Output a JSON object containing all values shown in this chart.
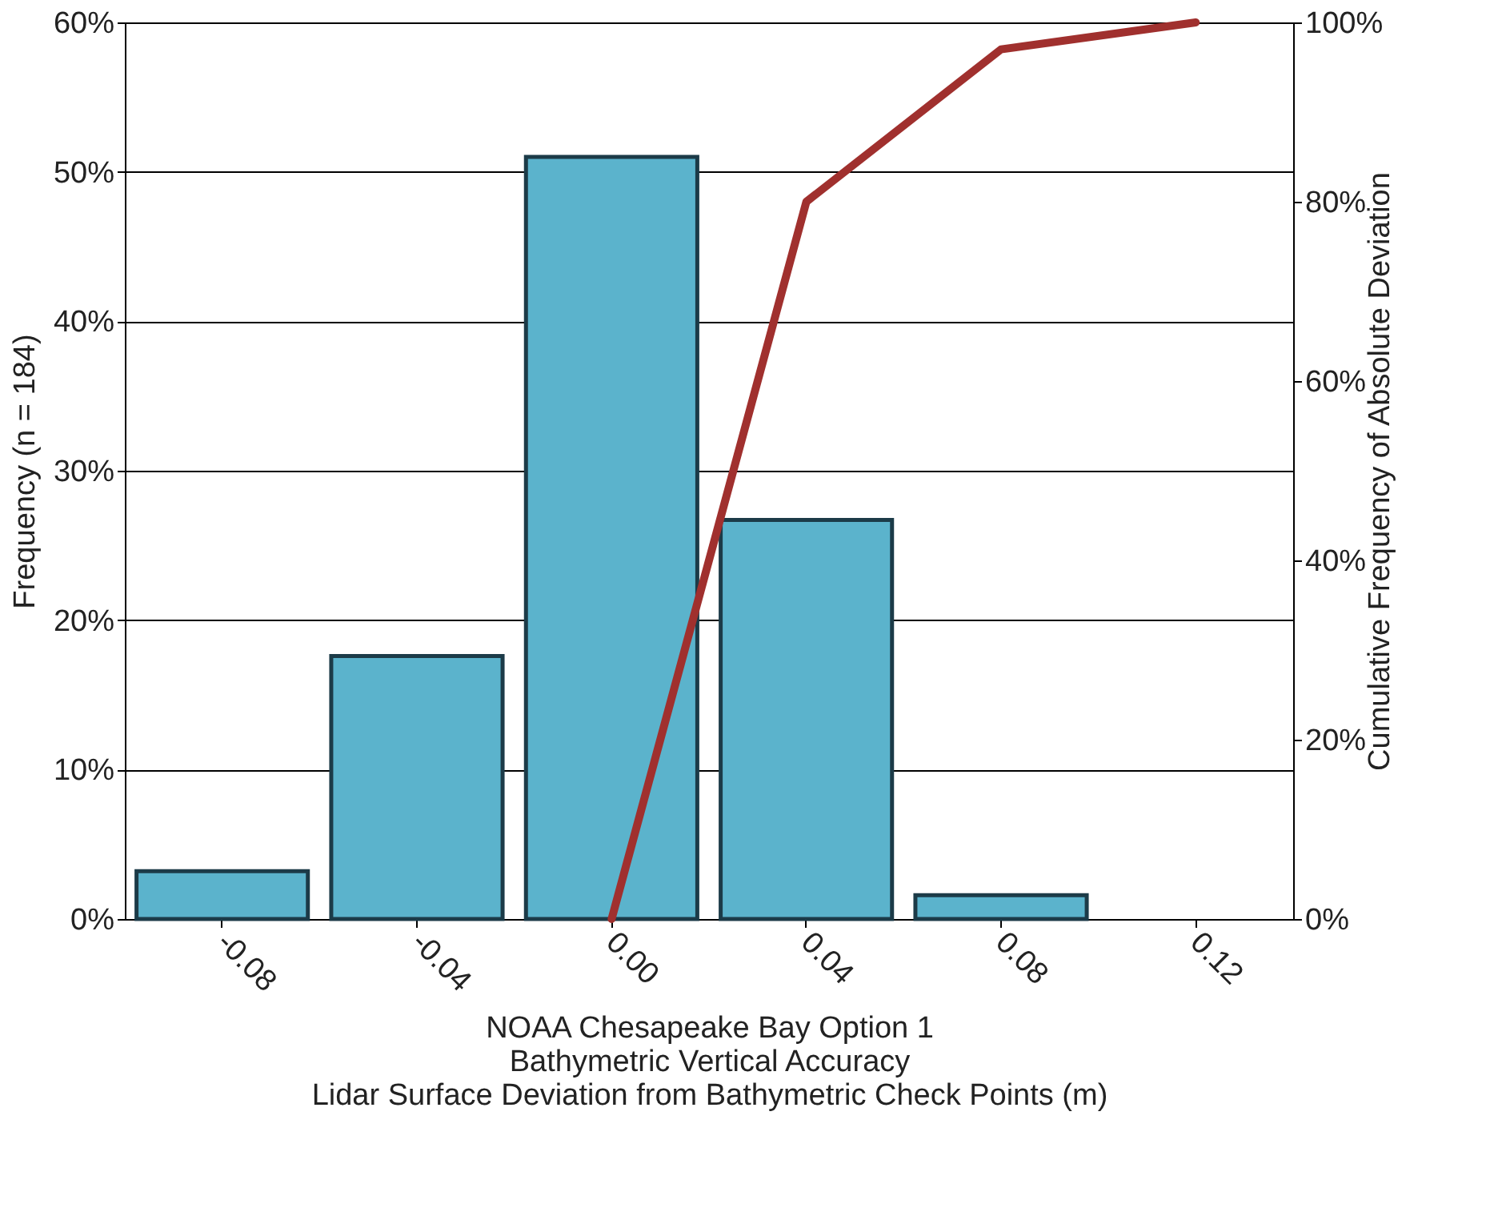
{
  "chart_data": {
    "type": "bar",
    "categories": [
      "-0.08",
      "-0.04",
      "0.00",
      "0.04",
      "0.08",
      "0.12"
    ],
    "series": [
      {
        "color": "#5bb3cc",
        "values": [
          3.2,
          17.6,
          51.0,
          26.7,
          1.6,
          null
        ]
      },
      {
        "type": "line",
        "axis": "y2",
        "color": "#a0302e",
        "line_style": "solid",
        "values": [
          null,
          null,
          0,
          80,
          97,
          100
        ]
      }
    ],
    "xlabel": "NOAA Chesapeake Bay Option 1\nBathymetric Vertical Accuracy\nLidar Surface Deviation from Bathymetric Check Points (m)",
    "ylabel": "Frequency (n = 184)",
    "y2label": "Cumulative Frequency of Absolute Deviation",
    "ylim": [
      0,
      60
    ],
    "yticks": [
      {
        "value": 0,
        "label": "0%"
      },
      {
        "value": 10,
        "label": "10%"
      },
      {
        "value": 20,
        "label": "20%"
      },
      {
        "value": 30,
        "label": "30%"
      },
      {
        "value": 40,
        "label": "40%"
      },
      {
        "value": 50,
        "label": "50%"
      },
      {
        "value": 60,
        "label": "60%"
      }
    ],
    "y2lim": [
      0,
      100
    ],
    "y2ticks": [
      {
        "value": 0,
        "label": "0%"
      },
      {
        "value": 20,
        "label": "20%"
      },
      {
        "value": 40,
        "label": "40%"
      },
      {
        "value": 60,
        "label": "60%"
      },
      {
        "value": 80,
        "label": "80%"
      },
      {
        "value": 100,
        "label": "100%"
      }
    ],
    "grid": "y"
  }
}
